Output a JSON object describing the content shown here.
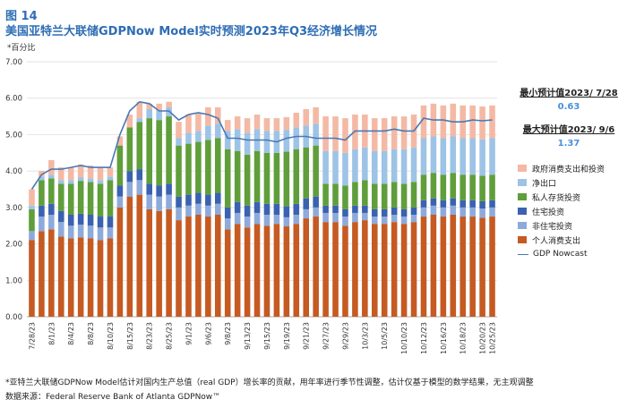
{
  "header": {
    "figure_label": "图 14",
    "title": "美国亚特兰大联储GDPNow Model实时预测2023年Q3经济增长情况",
    "unit": "*百分比"
  },
  "annotations": {
    "min_label": "最小预计值2023/ 7/28",
    "min_value": "0.63",
    "max_label": "最大预计值2023/ 9/6",
    "max_value": "1.37"
  },
  "footer": {
    "note": "*亚特兰大联储GDPNow Model估计对国内生产总值（real GDP）增长率的贡献，用年率进行季节性调整，估计仅基于模型的数学结果，无主观调整",
    "source": "数据来源：Federal Reserve Bank of Atlanta GDPNow™"
  },
  "colors": {
    "personal": "#c55a22",
    "nonres": "#8eaadb",
    "resid": "#3a62b0",
    "inventory": "#5f9e3a",
    "net_exports": "#9dc3e6",
    "gov": "#f4b9a4",
    "line": "#4a78b5"
  },
  "chart_data": {
    "type": "bar",
    "stacked": true,
    "ylim": [
      0,
      7
    ],
    "yticks": [
      "0.00",
      "1.00",
      "2.00",
      "3.00",
      "4.00",
      "5.00",
      "6.00",
      "7.00"
    ],
    "categories": [
      "7/28/23",
      "7/31/23",
      "8/1/23",
      "8/2/23",
      "8/4/23",
      "8/7/23",
      "8/8/23",
      "8/9/23",
      "8/10/23",
      "8/11/23",
      "8/15/23",
      "8/16/23",
      "8/23/23",
      "8/24/23",
      "8/25/23",
      "8/31/23",
      "9/1/23",
      "9/5/23",
      "9/6/23",
      "9/7/23",
      "9/8/23",
      "9/13/23",
      "9/14/23",
      "9/15/23",
      "9/18/23",
      "9/19/23",
      "9/20/23",
      "9/21/23",
      "9/26/23",
      "9/27/23",
      "9/28/23",
      "9/29/23",
      "10/2/23",
      "10/3/23",
      "10/4/23",
      "10/5/23",
      "10/6/23",
      "10/10/23",
      "10/11/23",
      "10/12/23",
      "10/13/23",
      "10/16/23",
      "10/17/23",
      "10/18/23",
      "10/19/23",
      "10/20/23",
      "10/23/23",
      "10/25/23"
    ],
    "xtick_labels": [
      "7/28/23",
      "",
      "8/1/23",
      "",
      "8/4/23",
      "",
      "8/8/23",
      "",
      "8/10/23",
      "",
      "8/15/23",
      "",
      "8/23/23",
      "",
      "8/25/23",
      "",
      "9/1/23",
      "",
      "9/6/23",
      "",
      "9/8/23",
      "",
      "9/13/23",
      "",
      "9/15/23",
      "",
      "9/19/23",
      "",
      "9/21/23",
      "",
      "9/27/23",
      "",
      "9/29/23",
      "",
      "10/3/23",
      "",
      "10/5/23",
      "",
      "10/10/23",
      "",
      "10/12/23",
      "",
      "10/16/23",
      "",
      "10/18/23",
      "",
      "10/20/23",
      "10/25/23"
    ],
    "series": [
      {
        "name": "个人消费支出",
        "key": "personal",
        "values": [
          2.1,
          2.35,
          2.4,
          2.2,
          2.15,
          2.18,
          2.15,
          2.1,
          2.15,
          3.0,
          3.3,
          3.35,
          2.95,
          2.9,
          2.95,
          2.65,
          2.75,
          2.8,
          2.75,
          2.8,
          2.4,
          2.55,
          2.45,
          2.55,
          2.5,
          2.55,
          2.48,
          2.55,
          2.7,
          2.75,
          2.6,
          2.6,
          2.5,
          2.6,
          2.65,
          2.55,
          2.55,
          2.6,
          2.55,
          2.6,
          2.75,
          2.8,
          2.75,
          2.8,
          2.75,
          2.75,
          2.72,
          2.75
        ]
      },
      {
        "name": "非住宅投资",
        "key": "nonres",
        "values": [
          0.25,
          0.4,
          0.4,
          0.4,
          0.35,
          0.35,
          0.35,
          0.35,
          0.3,
          0.3,
          0.4,
          0.4,
          0.4,
          0.4,
          0.4,
          0.35,
          0.3,
          0.3,
          0.3,
          0.3,
          0.3,
          0.3,
          0.3,
          0.3,
          0.3,
          0.25,
          0.25,
          0.25,
          0.25,
          0.25,
          0.25,
          0.25,
          0.25,
          0.25,
          0.2,
          0.2,
          0.2,
          0.2,
          0.2,
          0.2,
          0.25,
          0.25,
          0.25,
          0.25,
          0.25,
          0.25,
          0.25,
          0.25
        ]
      },
      {
        "name": "住宅投资",
        "key": "resid",
        "values": [
          0.0,
          0.3,
          0.3,
          0.3,
          0.3,
          0.3,
          0.3,
          0.3,
          0.3,
          0.3,
          0.3,
          0.3,
          0.3,
          0.3,
          0.3,
          0.3,
          0.3,
          0.3,
          0.3,
          0.3,
          0.3,
          0.3,
          0.3,
          0.3,
          0.3,
          0.3,
          0.3,
          0.3,
          0.3,
          0.3,
          0.2,
          0.2,
          0.2,
          0.2,
          0.2,
          0.2,
          0.2,
          0.2,
          0.2,
          0.2,
          0.2,
          0.2,
          0.2,
          0.2,
          0.2,
          0.2,
          0.2,
          0.2
        ]
      },
      {
        "name": "私人存货投资",
        "key": "inventory",
        "values": [
          0.6,
          0.7,
          0.7,
          0.75,
          0.85,
          0.9,
          0.9,
          0.9,
          1.0,
          1.1,
          1.2,
          1.3,
          1.8,
          1.8,
          1.85,
          1.4,
          1.4,
          1.4,
          1.5,
          1.5,
          1.6,
          1.4,
          1.4,
          1.4,
          1.4,
          1.4,
          1.5,
          1.5,
          1.4,
          1.4,
          0.6,
          0.6,
          0.65,
          0.65,
          0.7,
          0.7,
          0.7,
          0.7,
          0.7,
          0.7,
          0.7,
          0.7,
          0.7,
          0.7,
          0.7,
          0.7,
          0.7,
          0.7
        ]
      },
      {
        "name": "净出口",
        "key": "net_exports",
        "values": [
          0.1,
          0.1,
          0.1,
          0.1,
          0.1,
          0.1,
          0.1,
          0.1,
          0.1,
          0.0,
          0.0,
          0.1,
          0.25,
          0.25,
          0.25,
          0.2,
          0.3,
          0.3,
          0.4,
          0.4,
          0.5,
          0.6,
          0.6,
          0.6,
          0.6,
          0.6,
          0.6,
          0.6,
          0.6,
          0.6,
          0.9,
          0.9,
          0.9,
          0.9,
          0.9,
          0.9,
          0.9,
          0.9,
          0.95,
          0.95,
          1.0,
          1.0,
          1.0,
          1.0,
          1.0,
          1.0,
          1.0,
          1.0
        ]
      },
      {
        "name": "政府消费支出和投资",
        "key": "gov",
        "values": [
          0.45,
          0.15,
          0.4,
          0.35,
          0.35,
          0.35,
          0.35,
          0.35,
          0.25,
          0.25,
          0.35,
          0.45,
          0.15,
          0.2,
          0.15,
          0.45,
          0.5,
          0.5,
          0.5,
          0.45,
          0.3,
          0.35,
          0.4,
          0.4,
          0.35,
          0.35,
          0.35,
          0.4,
          0.45,
          0.45,
          0.95,
          0.95,
          0.95,
          0.95,
          0.9,
          0.9,
          0.9,
          0.9,
          0.9,
          0.9,
          0.9,
          0.9,
          0.9,
          0.9,
          0.9,
          0.9,
          0.9,
          0.9
        ]
      }
    ],
    "line": {
      "name": "GDP Nowcast",
      "key": "line",
      "values": [
        3.5,
        3.9,
        4.05,
        4.05,
        4.1,
        4.15,
        4.1,
        4.1,
        4.1,
        5.0,
        5.65,
        5.9,
        5.85,
        5.65,
        5.65,
        5.4,
        5.55,
        5.6,
        5.55,
        5.45,
        4.9,
        4.9,
        4.85,
        4.85,
        4.85,
        4.8,
        4.9,
        4.95,
        4.95,
        4.9,
        4.9,
        4.9,
        4.85,
        5.1,
        5.1,
        5.1,
        5.1,
        5.15,
        5.1,
        5.1,
        5.45,
        5.4,
        5.4,
        5.35,
        5.35,
        5.4,
        5.38,
        5.4
      ]
    },
    "legend": [
      "政府消费支出和投资",
      "净出口",
      "私人存货投资",
      "住宅投资",
      "非住宅投资",
      "个人消费支出",
      "GDP Nowcast"
    ]
  }
}
